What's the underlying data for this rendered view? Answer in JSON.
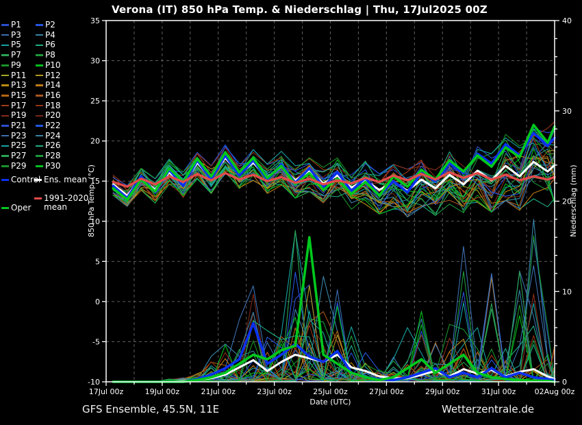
{
  "title": "Verona  (IT)  850 hPa Temp. & Niederschlag | Thu, 17Jul2025 00Z",
  "footer": {
    "left": "GFS Ensemble, 45.5N, 11E",
    "right": "Wetterzentrale.de"
  },
  "legend": {
    "members": [
      {
        "label": "P1"
      },
      {
        "label": "P2"
      },
      {
        "label": "P3"
      },
      {
        "label": "P4"
      },
      {
        "label": "P5"
      },
      {
        "label": "P6"
      },
      {
        "label": "P7"
      },
      {
        "label": "P8"
      },
      {
        "label": "P9"
      },
      {
        "label": "P10"
      },
      {
        "label": "P11"
      },
      {
        "label": "P12"
      },
      {
        "label": "P13"
      },
      {
        "label": "P14"
      },
      {
        "label": "P15"
      },
      {
        "label": "P16"
      },
      {
        "label": "P17"
      },
      {
        "label": "P18"
      },
      {
        "label": "P19"
      },
      {
        "label": "P20"
      },
      {
        "label": "P21"
      },
      {
        "label": "P22"
      },
      {
        "label": "P23"
      },
      {
        "label": "P24"
      },
      {
        "label": "P25"
      },
      {
        "label": "P26"
      },
      {
        "label": "P27"
      },
      {
        "label": "P28"
      },
      {
        "label": "P29"
      },
      {
        "label": "P30"
      }
    ],
    "control": {
      "label": "Control",
      "color": "#0a31f0"
    },
    "ens_mean": {
      "label": "Ens. mean",
      "color": "#ffffff"
    },
    "climate": {
      "label": "1991-2020 mean",
      "color": "#e24a4a"
    },
    "oper": {
      "label": "Oper",
      "color": "#00c81e"
    }
  },
  "chart_data": {
    "type": "line",
    "title": "Verona  (IT)  850 hPa Temp. & Niederschlag | Thu, 17Jul2025 00Z",
    "x_axis": {
      "label": "Date (UTC)",
      "range_days": [
        0,
        16
      ],
      "tick_labels": [
        "17Jul 00z",
        "19Jul 00z",
        "21Jul 00z",
        "23Jul 00z",
        "25Jul 00z",
        "27Jul 00z",
        "29Jul 00z",
        "31Jul 00z",
        "02Aug 00z"
      ],
      "tick_positions_days": [
        0,
        2,
        4,
        6,
        8,
        10,
        12,
        14,
        16
      ],
      "minor_tick_step_days": 1
    },
    "y_left": {
      "label": "850 hPa Temp. (°C)",
      "range": [
        -10,
        35
      ],
      "ticks": [
        35,
        30,
        25,
        20,
        15,
        10,
        5,
        0,
        -5,
        -10
      ]
    },
    "y_right": {
      "label": "Niederschlag (mm)",
      "range": [
        0,
        40
      ],
      "ticks": [
        40,
        30,
        20,
        10,
        0
      ],
      "minor_tick_step": 2
    },
    "grid": {
      "on": true,
      "color": "#5f5f5f",
      "dash": "4 4"
    },
    "time_start_offset_days": 0.25,
    "time_step_days": 0.5,
    "n_points": 33,
    "series": {
      "ens_mean_temp": [
        14.6,
        13.2,
        15.4,
        13.9,
        16.1,
        14.6,
        17.3,
        15.4,
        17.9,
        15.9,
        17.3,
        15.5,
        16.8,
        15.1,
        16.3,
        14.7,
        15.7,
        14.2,
        15.1,
        13.9,
        14.9,
        13.8,
        15.2,
        14.1,
        15.8,
        14.6,
        16.3,
        15.1,
        16.9,
        15.6,
        17.4,
        16.2,
        17.0
      ],
      "control_temp": [
        14.4,
        12.9,
        15.6,
        13.6,
        16.4,
        14.4,
        17.6,
        15.2,
        18.2,
        15.7,
        17.6,
        15.2,
        17.1,
        14.8,
        16.6,
        14.3,
        16.1,
        13.8,
        15.4,
        13.2,
        15.0,
        13.6,
        16.0,
        15.0,
        17.2,
        16.0,
        18.4,
        17.2,
        19.6,
        18.2,
        21.0,
        19.4,
        20.4
      ],
      "oper_temp": [
        14.1,
        12.7,
        15.2,
        13.7,
        16.6,
        14.9,
        17.8,
        15.6,
        18.6,
        16.1,
        17.9,
        15.4,
        16.9,
        14.6,
        16.0,
        13.9,
        15.3,
        13.4,
        14.9,
        13.2,
        15.6,
        14.3,
        16.4,
        15.2,
        17.6,
        16.2,
        18.2,
        16.8,
        19.2,
        18.0,
        22.0,
        19.8,
        21.8
      ],
      "climate_mean_temp": [
        14.9,
        14.3,
        15.3,
        14.6,
        15.6,
        14.9,
        15.9,
        15.1,
        16.0,
        15.2,
        15.8,
        15.0,
        15.5,
        14.8,
        15.3,
        14.6,
        15.1,
        14.7,
        15.4,
        14.9,
        15.7,
        15.1,
        15.9,
        15.2,
        16.1,
        15.4,
        16.0,
        15.2,
        15.8,
        15.1,
        15.6,
        15.2,
        15.5
      ],
      "ens_mean_precip": [
        0,
        0,
        0,
        0,
        0,
        0.1,
        0.2,
        0.4,
        0.8,
        1.6,
        2.4,
        1.2,
        2.2,
        3.0,
        2.6,
        2.2,
        3.0,
        1.6,
        1.2,
        0.6,
        0.4,
        0.4,
        0.8,
        1.2,
        0.6,
        1.4,
        0.9,
        1.3,
        0.6,
        1.1,
        1.4,
        0.6,
        0.3
      ],
      "control_precip": [
        0,
        0,
        0,
        0,
        0,
        0,
        0.3,
        0.8,
        1.5,
        2.5,
        6.5,
        2.0,
        3.0,
        4.2,
        2.8,
        2.2,
        3.4,
        1.0,
        0.5,
        0.3,
        0.2,
        0.5,
        1.0,
        1.5,
        0.5,
        1.0,
        0.5,
        1.5,
        0.5,
        1.0,
        0.5,
        0.3,
        0.2
      ],
      "oper_precip": [
        0,
        0,
        0,
        0,
        0,
        0,
        0.2,
        0.5,
        1.0,
        2.0,
        3.0,
        2.5,
        3.5,
        4.0,
        16.0,
        3.0,
        2.0,
        1.0,
        0.5,
        0.2,
        0.5,
        1.5,
        2.5,
        1.0,
        2.0,
        3.0,
        1.0,
        0.5,
        0.3,
        0.2,
        0.1,
        0.1,
        0
      ]
    },
    "ensemble_envelope": {
      "temp_min": [
        13.2,
        11.8,
        13.8,
        12.2,
        14.4,
        12.8,
        15.2,
        13.4,
        15.8,
        14.0,
        15.0,
        13.4,
        14.4,
        12.8,
        13.6,
        12.2,
        12.8,
        11.4,
        12.0,
        10.8,
        11.4,
        10.4,
        11.6,
        10.6,
        12.0,
        10.8,
        12.2,
        11.0,
        12.4,
        11.2,
        12.6,
        11.6,
        12.0
      ],
      "temp_max": [
        15.8,
        14.6,
        16.9,
        15.4,
        17.8,
        16.2,
        19.0,
        17.0,
        19.6,
        17.6,
        19.2,
        17.2,
        18.8,
        17.0,
        18.4,
        16.8,
        18.0,
        16.4,
        17.6,
        16.0,
        17.2,
        16.6,
        18.0,
        17.0,
        19.0,
        17.8,
        20.0,
        18.6,
        21.0,
        19.6,
        22.4,
        21.8,
        22.6
      ],
      "precip_max": [
        0,
        0,
        0,
        0,
        0.3,
        0.5,
        1.5,
        3,
        5,
        8,
        14,
        6,
        10,
        20,
        22,
        12,
        19,
        8,
        4,
        3,
        3,
        6,
        9,
        5,
        8,
        15,
        6,
        12,
        5,
        16,
        18,
        6,
        4
      ]
    },
    "colors": {
      "background": "#000000",
      "axis": "#ffffff",
      "grid": "#5f5f5f",
      "control": "#0a31f0",
      "ens_mean": "#ffffff",
      "oper": "#00c81e",
      "climate_mean": "#e24a4a",
      "member_palette": [
        "#2a4fd0",
        "#2456e0",
        "#3b6fb0",
        "#3884a8",
        "#17a3a3",
        "#1fae85",
        "#2aa455",
        "#1d9a3c",
        "#199328",
        "#00bf1e",
        "#a8aa22",
        "#b39b1d",
        "#bb8a12",
        "#c17a16",
        "#b56412",
        "#aa561f",
        "#a13e14",
        "#953313",
        "#8a2c1c",
        "#7c2818"
      ]
    }
  }
}
